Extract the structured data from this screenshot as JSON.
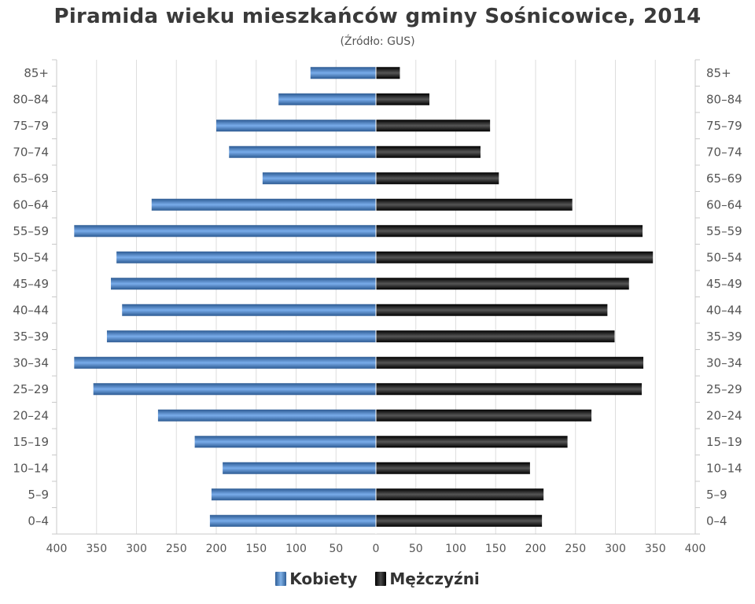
{
  "chart_data": {
    "type": "bar",
    "orientation": "horizontal-population-pyramid",
    "title": "Piramida wieku mieszkańców gminy Sośnicowice, 2014",
    "subtitle": "(Źródło: GUS)",
    "categories": [
      "85+",
      "80–84",
      "75–79",
      "70–74",
      "65–69",
      "60–64",
      "55–59",
      "50–54",
      "45–49",
      "40–44",
      "35–39",
      "30–34",
      "25–29",
      "20–24",
      "15–19",
      "10–14",
      "5–9",
      "0–4"
    ],
    "series": [
      {
        "name": "Kobiety",
        "side": "left",
        "color": "#3d78bd",
        "values": [
          82,
          122,
          200,
          184,
          142,
          281,
          378,
          325,
          332,
          318,
          337,
          378,
          354,
          273,
          227,
          192,
          206,
          208
        ]
      },
      {
        "name": "Mężczyźni",
        "side": "right",
        "color": "#111111",
        "values": [
          30,
          67,
          143,
          131,
          154,
          246,
          334,
          347,
          317,
          290,
          299,
          335,
          333,
          270,
          240,
          193,
          210,
          208
        ]
      }
    ],
    "xlim": [
      -400,
      400
    ],
    "x_ticks": [
      -400,
      -350,
      -300,
      -250,
      -200,
      -150,
      -100,
      -50,
      0,
      50,
      100,
      150,
      200,
      250,
      300,
      350,
      400
    ],
    "x_tick_labels": [
      "400",
      "350",
      "300",
      "250",
      "200",
      "150",
      "100",
      "50",
      "0",
      "50",
      "100",
      "150",
      "200",
      "250",
      "300",
      "350",
      "400"
    ],
    "grid": true,
    "legend_position": "bottom-center"
  }
}
